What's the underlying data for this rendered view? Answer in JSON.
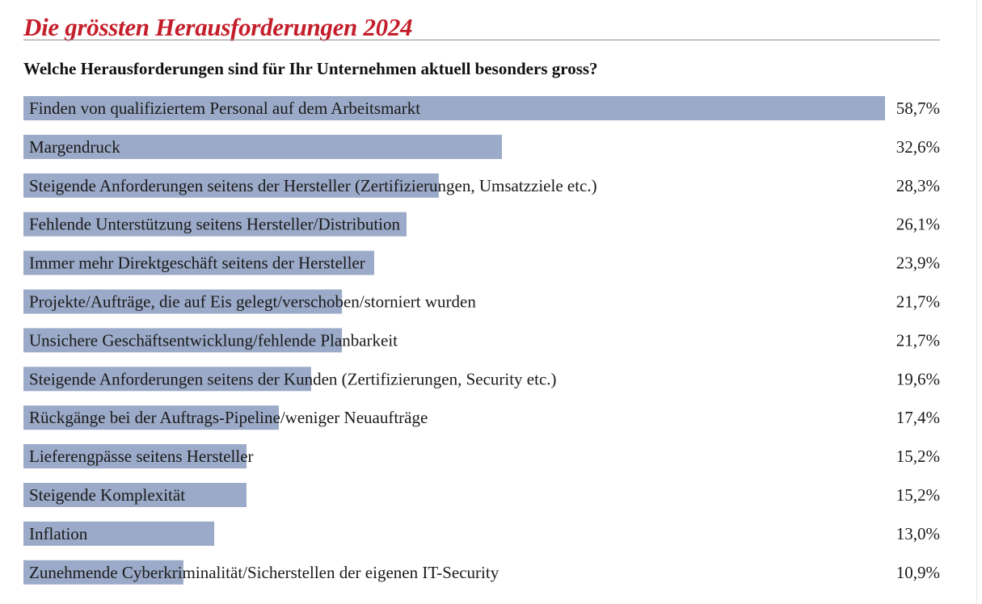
{
  "title": "Die grössten Herausforderungen 2024",
  "subtitle": "Welche Herausforderungen sind für Ihr Unternehmen aktuell besonders gross?",
  "colors": {
    "title": "#c41e2a",
    "bar": "#9baac8",
    "text": "#1a1a1a"
  },
  "chart_data": {
    "type": "bar",
    "orientation": "horizontal",
    "unit": "%",
    "xlim": [
      0,
      58.7
    ],
    "grid": false,
    "legend": "none",
    "categories": [
      "Finden von qualifiziertem Personal auf dem Arbeitsmarkt",
      "Margendruck",
      "Steigende Anforderungen seitens der Hersteller (Zertifizierungen, Umsatzziele etc.)",
      "Fehlende Unterstützung seitens Hersteller/Distribution",
      "Immer mehr Direktgeschäft seitens der Hersteller",
      "Projekte/Aufträge, die auf Eis gelegt/verschoben/storniert wurden",
      "Unsichere Geschäftsentwicklung/fehlende Planbarkeit",
      "Steigende Anforderungen seitens der Kunden (Zertifizierungen, Security etc.)",
      "Rückgänge bei der Auftrags-Pipeline/weniger Neuaufträge",
      "Lieferengpässe seitens Hersteller",
      "Steigende Komplexität",
      "Inflation",
      "Zunehmende Cyberkriminalität/Sicherstellen der eigenen IT-Security"
    ],
    "values": [
      58.7,
      32.6,
      28.3,
      26.1,
      23.9,
      21.7,
      21.7,
      19.6,
      17.4,
      15.2,
      15.2,
      13.0,
      10.9
    ],
    "value_labels": [
      "58,7%",
      "32,6%",
      "28,3%",
      "26,1%",
      "23,9%",
      "21,7%",
      "21,7%",
      "19,6%",
      "17,4%",
      "15,2%",
      "15,2%",
      "13,0%",
      "10,9%"
    ]
  }
}
